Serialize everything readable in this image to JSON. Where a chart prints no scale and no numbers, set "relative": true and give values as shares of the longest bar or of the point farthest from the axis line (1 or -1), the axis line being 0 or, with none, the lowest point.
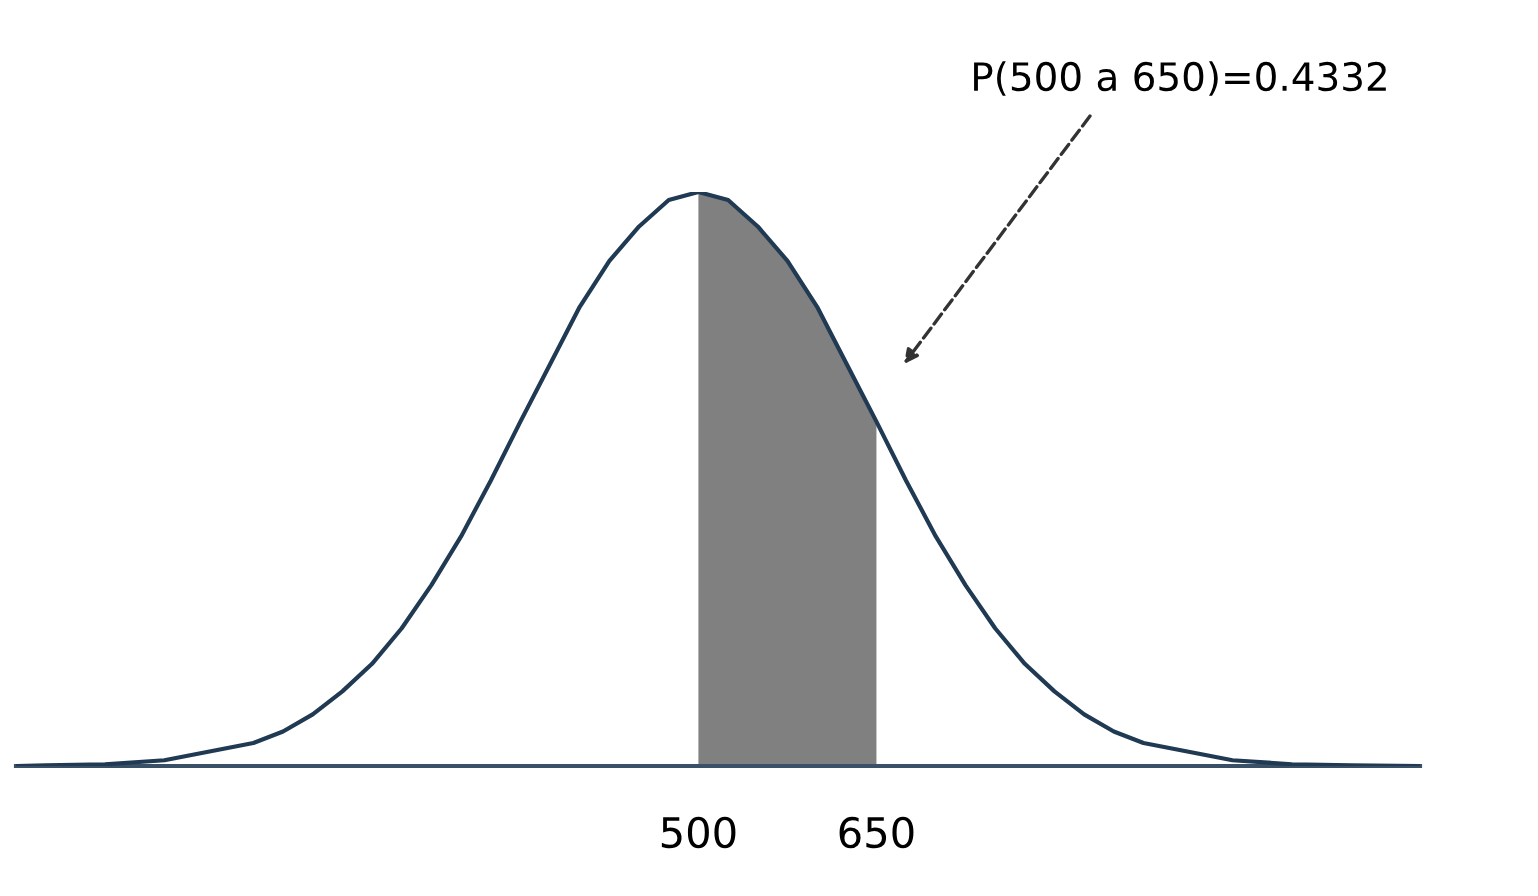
{
  "chart_data": {
    "type": "line",
    "relative": true,
    "xlim": [
      -75,
      1108
    ],
    "xticks": [
      500,
      650
    ],
    "grid": false,
    "legend": false,
    "marker": "none",
    "line_style": "solid",
    "annotations": [
      "P(500 a 650)=0.4332"
    ],
    "series": [
      {
        "color": "#1f3a52",
        "x": [
          -75,
          -50,
          0,
          50,
          100,
          125,
          150,
          175,
          200,
          225,
          250,
          275,
          300,
          325,
          350,
          375,
          400,
          425,
          450,
          475,
          500,
          525,
          550,
          575,
          600,
          625,
          650,
          675,
          700,
          725,
          750,
          775,
          800,
          825,
          850,
          875,
          900,
          950,
          1000,
          1050,
          1108
        ],
        "values": [
          0,
          0.001,
          0.003,
          0.01,
          0.03,
          0.04,
          0.06,
          0.09,
          0.13,
          0.178,
          0.24,
          0.315,
          0.4,
          0.497,
          0.6,
          0.7,
          0.8,
          0.88,
          0.94,
          0.986,
          1,
          0.986,
          0.94,
          0.88,
          0.8,
          0.7,
          0.6,
          0.497,
          0.4,
          0.315,
          0.24,
          0.178,
          0.13,
          0.09,
          0.06,
          0.04,
          0.03,
          0.01,
          0.003,
          0.001,
          0
        ]
      },
      {
        "type": "area",
        "color": "#808080",
        "x": [
          500,
          525,
          550,
          575,
          600,
          625,
          650
        ],
        "values": [
          1,
          0.986,
          0.94,
          0.88,
          0.8,
          0.7,
          0.6
        ]
      }
    ]
  }
}
